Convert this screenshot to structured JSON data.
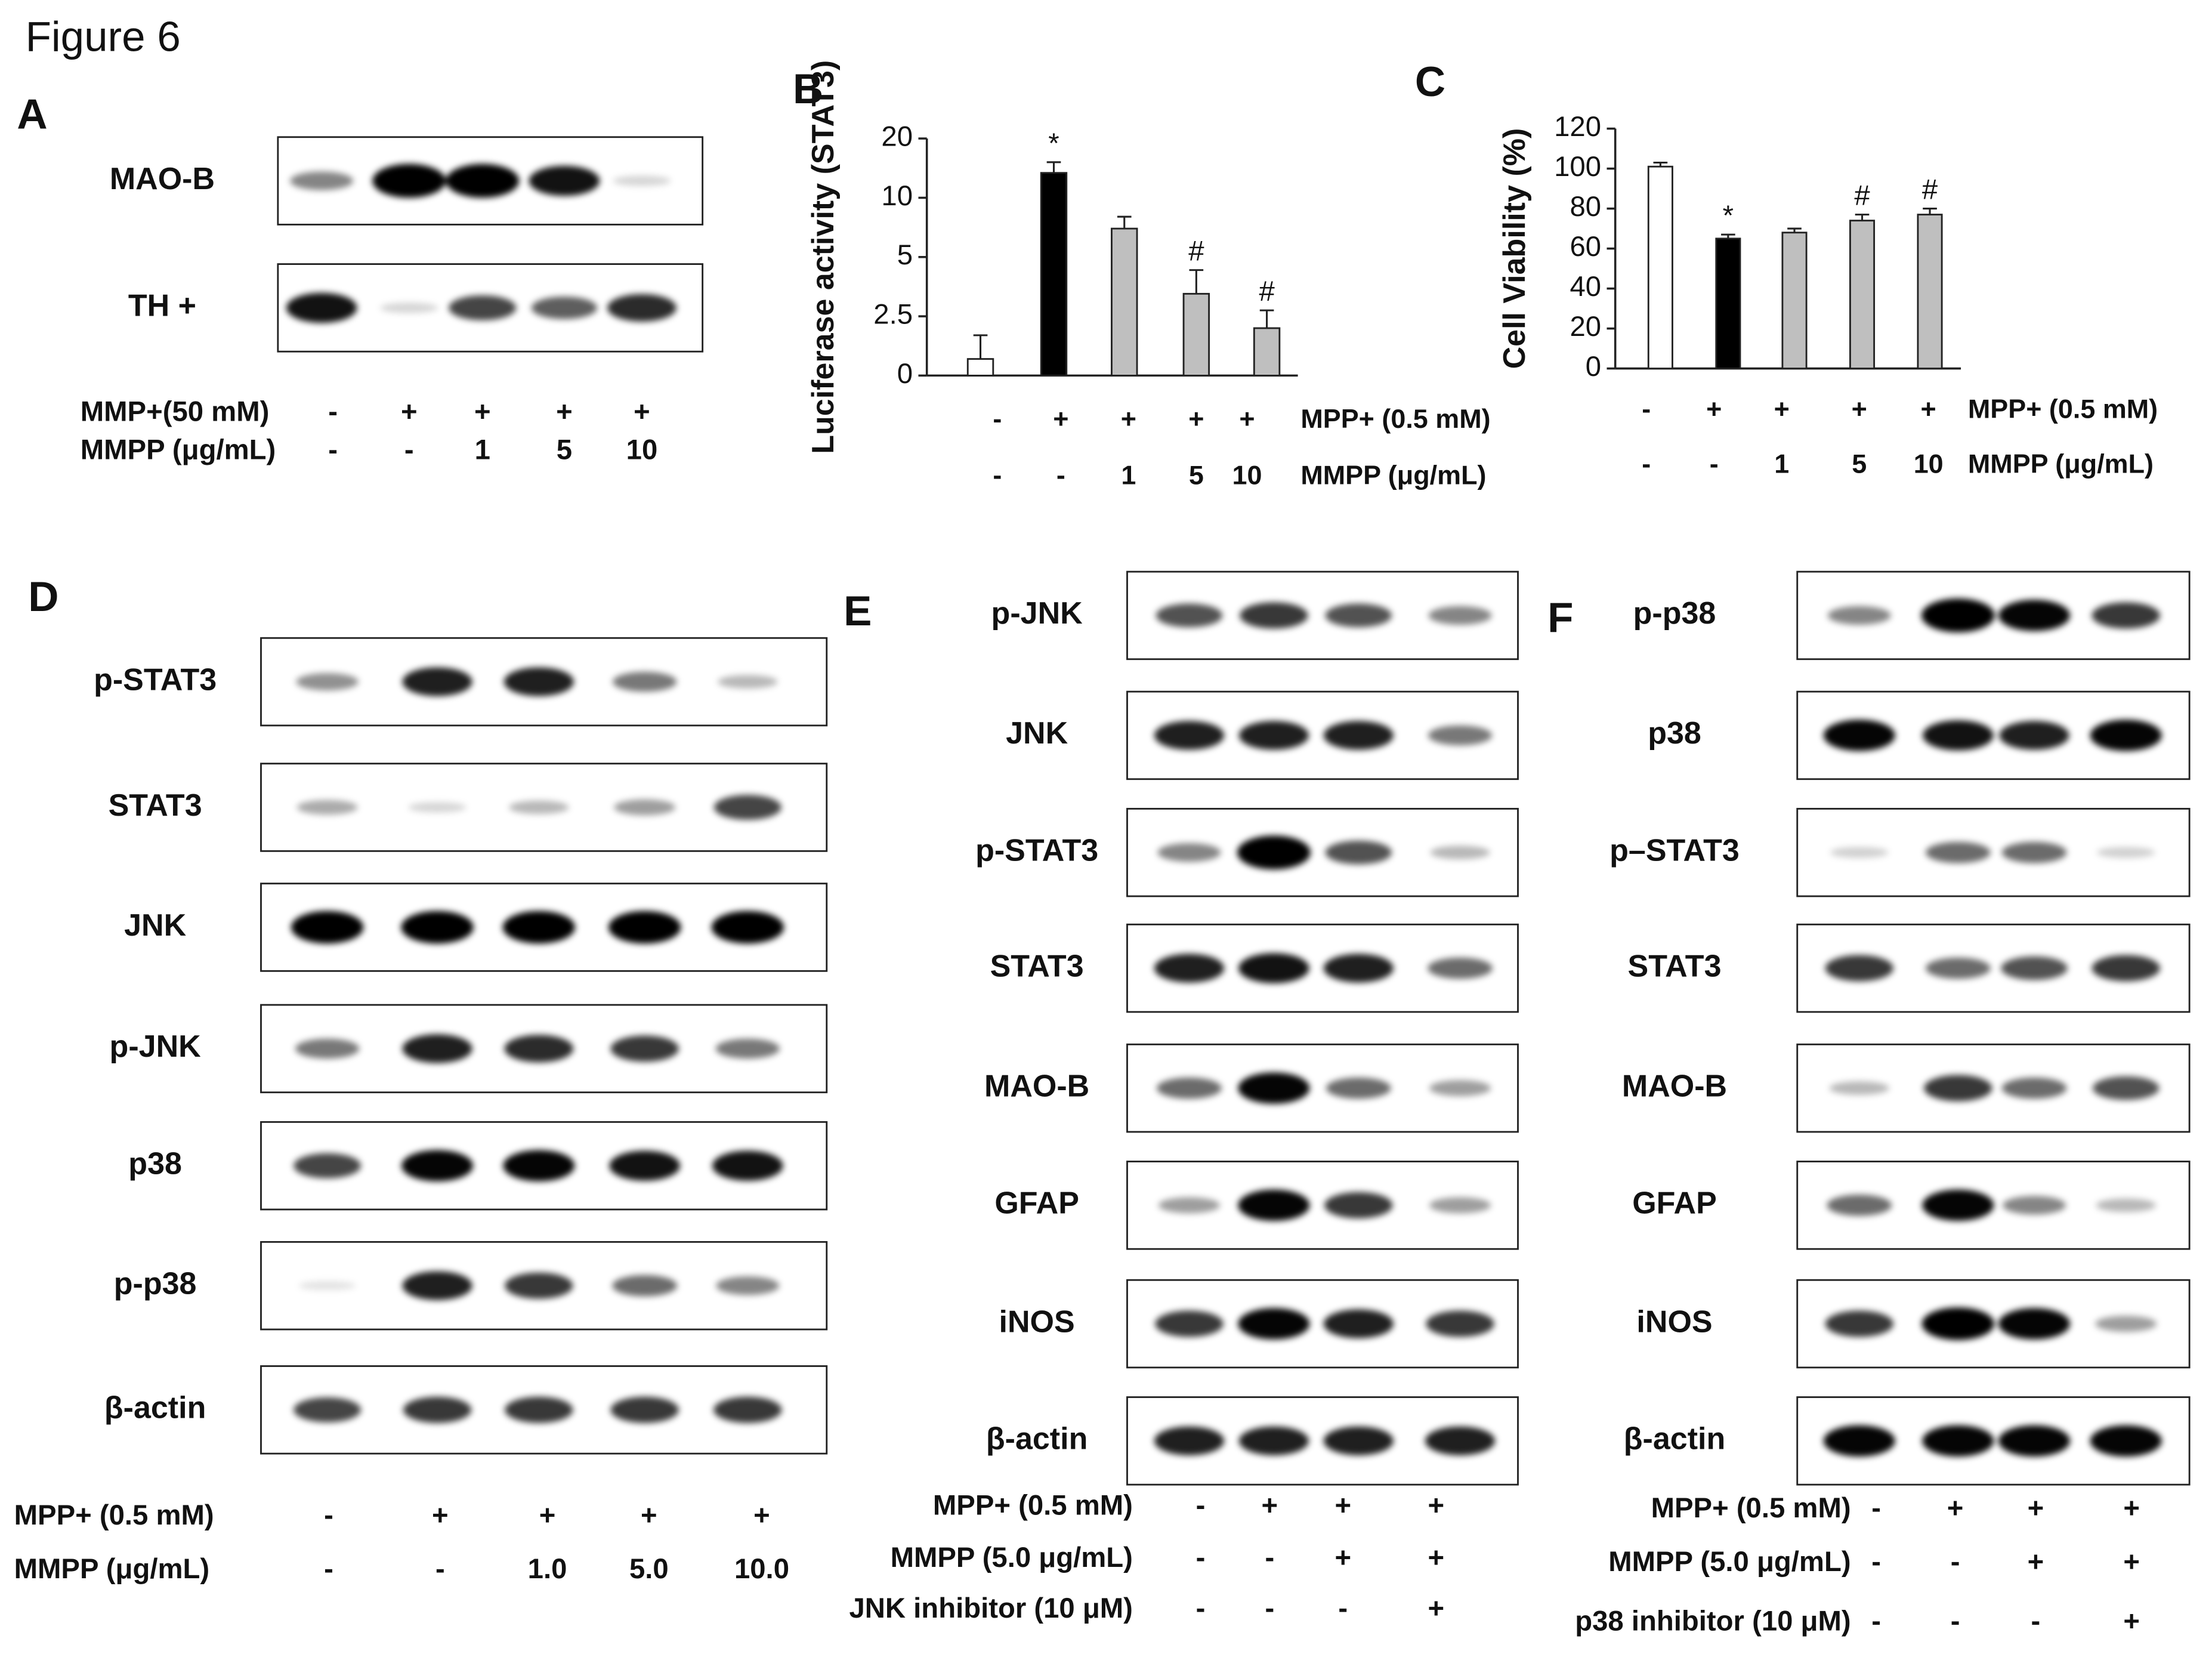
{
  "figure_title": "Figure 6",
  "panel_A": {
    "letter": "A",
    "blots": [
      "MAO-B",
      "TH +"
    ],
    "conditions": [
      {
        "label": "MMP+(50 mM)",
        "cells": [
          "-",
          "+",
          "+",
          "+",
          "+"
        ]
      },
      {
        "label": "MMPP (μg/mL)",
        "cells": [
          "-",
          "-",
          "1",
          "5",
          "10"
        ]
      }
    ]
  },
  "chart_data": [
    {
      "type": "bar",
      "letter": "B",
      "ylabel": "Luciferase activity (STAT3)",
      "values": [
        0.7,
        14.2,
        7.4,
        3.45,
        2.0
      ],
      "errors": [
        1,
        1.8,
        1,
        1,
        0.75
      ],
      "colors": [
        "#ffffff",
        "#000000",
        "#bfbfbf",
        "#bfbfbf",
        "#bfbfbf"
      ],
      "annotations": [
        null,
        "*",
        null,
        "#",
        "#"
      ],
      "ylim": [
        0,
        20
      ],
      "yticks": [
        0,
        2.5,
        5,
        10,
        20
      ],
      "scale": "tick-spaced",
      "conditions": [
        {
          "label": "MPP+ (0.5 mM)",
          "cells": [
            "-",
            "+",
            "+",
            "+",
            "+"
          ]
        },
        {
          "label": "MMPP (μg/mL)",
          "cells": [
            "-",
            "-",
            "1",
            "5",
            "10"
          ]
        }
      ]
    },
    {
      "type": "bar",
      "letter": "C",
      "ylabel": "Cell Viability (%)",
      "values": [
        101,
        65,
        68,
        74,
        77
      ],
      "errors": [
        2,
        2,
        2,
        3,
        3
      ],
      "colors": [
        "#ffffff",
        "#000000",
        "#bfbfbf",
        "#bfbfbf",
        "#bfbfbf"
      ],
      "annotations": [
        null,
        "*",
        null,
        "#",
        "#"
      ],
      "ylim": [
        0,
        120
      ],
      "yticks": [
        0,
        20,
        40,
        60,
        80,
        100,
        120
      ],
      "scale": "linear",
      "conditions": [
        {
          "label": "MPP+ (0.5 mM)",
          "cells": [
            "-",
            "+",
            "+",
            "+",
            "+"
          ]
        },
        {
          "label": "MMPP (μg/mL)",
          "cells": [
            "-",
            "-",
            "1",
            "5",
            "10"
          ]
        }
      ]
    }
  ],
  "panel_D": {
    "letter": "D",
    "blots": [
      "p-STAT3",
      "STAT3",
      "JNK",
      "p-JNK",
      "p38",
      "p-p38",
      "β-actin"
    ],
    "conditions": [
      {
        "label": "MPP+ (0.5 mM)",
        "cells": [
          "-",
          "+",
          "+",
          "+",
          "+"
        ]
      },
      {
        "label": "MMPP (μg/mL)",
        "cells": [
          "-",
          "-",
          "1.0",
          "5.0",
          "10.0"
        ]
      }
    ]
  },
  "panel_E": {
    "letter": "E",
    "blots": [
      "p-JNK",
      "JNK",
      "p-STAT3",
      "STAT3",
      "MAO-B",
      "GFAP",
      "iNOS",
      "β-actin"
    ],
    "conditions": [
      {
        "label": "MPP+ (0.5 mM)",
        "cells": [
          "-",
          "+",
          "+",
          "+"
        ]
      },
      {
        "label": "MMPP (5.0 μg/mL)",
        "cells": [
          "-",
          "-",
          "+",
          "+"
        ]
      },
      {
        "label": "JNK inhibitor (10 μM)",
        "cells": [
          "-",
          "-",
          "-",
          "+"
        ]
      }
    ]
  },
  "panel_F": {
    "letter": "F",
    "blots": [
      "p-p38",
      "p38",
      "p–STAT3",
      "STAT3",
      "MAO-B",
      "GFAP",
      "iNOS",
      "β-actin"
    ],
    "conditions": [
      {
        "label": "MPP+ (0.5 mM)",
        "cells": [
          "-",
          "+",
          "+",
          "+"
        ]
      },
      {
        "label": "MMPP (5.0 μg/mL)",
        "cells": [
          "-",
          "-",
          "+",
          "+"
        ]
      },
      {
        "label": "p38 inhibitor (10 μM)",
        "cells": [
          "-",
          "-",
          "-",
          "+"
        ]
      }
    ]
  }
}
